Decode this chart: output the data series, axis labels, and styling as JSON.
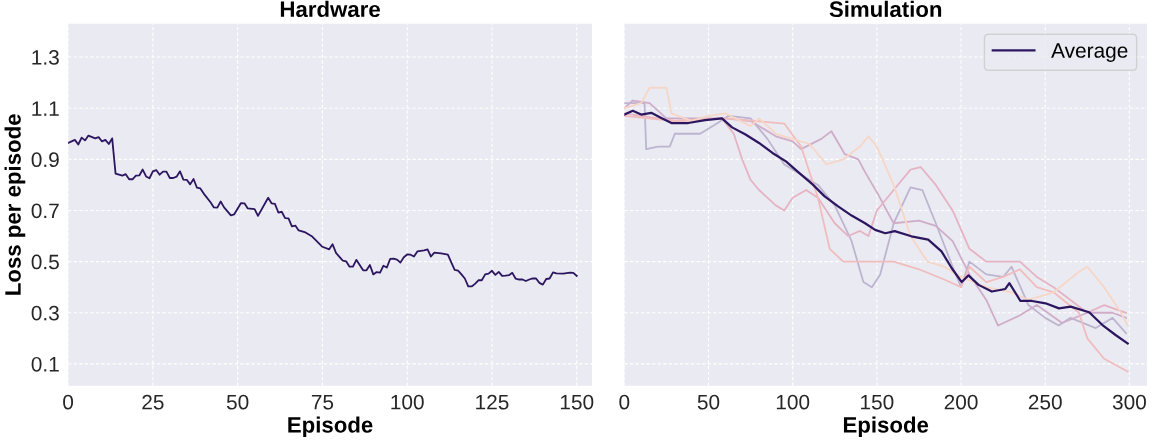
{
  "chart_data": [
    {
      "type": "line",
      "title": "Hardware",
      "xlabel": "Episode",
      "ylabel": "Loss per episode",
      "xlim": [
        0,
        154.5
      ],
      "xticks": [
        0,
        25,
        50,
        75,
        100,
        125,
        150
      ],
      "ylim": [
        0.014,
        1.43
      ],
      "yticks": [
        0.1,
        0.3,
        0.5,
        0.7,
        0.9,
        1.1,
        1.3
      ],
      "grid": true,
      "legend": false,
      "x": [
        0,
        2,
        3,
        4,
        5,
        6,
        8,
        9,
        10,
        11,
        12,
        13,
        14,
        16,
        17,
        18,
        19,
        20,
        21,
        22,
        23,
        24,
        25,
        26,
        27,
        28,
        29,
        30,
        31,
        32,
        33,
        34,
        35,
        36,
        37,
        38,
        39,
        40,
        42,
        43,
        44,
        45,
        46,
        48,
        49,
        51,
        52,
        53,
        55,
        56,
        59,
        60,
        61,
        62,
        63,
        64,
        65,
        66,
        67,
        68,
        70,
        72,
        75,
        77,
        78,
        79,
        81,
        82,
        83,
        84,
        85,
        87,
        88,
        89,
        90,
        91,
        92,
        93,
        94,
        95,
        96,
        97,
        98,
        99,
        100,
        101,
        102,
        103,
        105,
        106,
        107,
        108,
        110,
        112,
        113,
        114,
        115,
        116,
        117,
        118,
        119,
        120,
        121,
        122,
        123,
        124,
        125,
        126,
        127,
        128,
        129,
        130,
        131,
        132,
        133,
        134,
        135,
        136,
        137,
        138,
        139,
        140,
        141,
        142,
        143,
        144,
        146,
        148,
        149,
        150
      ],
      "series": [
        {
          "color": "#2d1660",
          "values": [
            0.964,
            0.976,
            0.958,
            0.985,
            0.974,
            0.993,
            0.982,
            0.987,
            0.97,
            0.976,
            0.96,
            0.982,
            0.844,
            0.836,
            0.842,
            0.822,
            0.822,
            0.836,
            0.837,
            0.86,
            0.833,
            0.826,
            0.853,
            0.858,
            0.84,
            0.852,
            0.852,
            0.827,
            0.827,
            0.832,
            0.853,
            0.821,
            0.82,
            0.802,
            0.823,
            0.789,
            0.786,
            0.766,
            0.732,
            0.712,
            0.711,
            0.735,
            0.712,
            0.681,
            0.685,
            0.729,
            0.728,
            0.708,
            0.705,
            0.679,
            0.75,
            0.728,
            0.726,
            0.692,
            0.695,
            0.67,
            0.669,
            0.638,
            0.641,
            0.622,
            0.614,
            0.598,
            0.558,
            0.548,
            0.568,
            0.534,
            0.504,
            0.501,
            0.48,
            0.48,
            0.507,
            0.466,
            0.466,
            0.487,
            0.45,
            0.459,
            0.457,
            0.484,
            0.477,
            0.511,
            0.512,
            0.508,
            0.496,
            0.517,
            0.528,
            0.527,
            0.52,
            0.54,
            0.544,
            0.548,
            0.52,
            0.535,
            0.532,
            0.527,
            0.497,
            0.468,
            0.465,
            0.45,
            0.434,
            0.403,
            0.403,
            0.413,
            0.427,
            0.427,
            0.45,
            0.453,
            0.464,
            0.448,
            0.46,
            0.444,
            0.445,
            0.447,
            0.456,
            0.433,
            0.43,
            0.43,
            0.424,
            0.43,
            0.434,
            0.434,
            0.417,
            0.41,
            0.432,
            0.434,
            0.458,
            0.454,
            0.453,
            0.457,
            0.456,
            0.444
          ]
        }
      ]
    },
    {
      "type": "line",
      "title": "Simulation",
      "xlabel": "Episode",
      "xlim": [
        0,
        310.5
      ],
      "xticks": [
        0,
        50,
        100,
        150,
        200,
        250,
        300
      ],
      "ylim": [
        0.014,
        1.43
      ],
      "yticks": [
        0.1,
        0.3,
        0.5,
        0.7,
        0.9,
        1.1,
        1.3
      ],
      "grid": true,
      "legend": "top right",
      "tick_labels": "x",
      "series": [
        {
          "color": "#bdb5cf",
          "x": [
            0,
            12,
            13,
            20,
            27,
            30,
            45,
            55,
            62,
            75,
            85,
            95,
            105,
            115,
            125,
            135,
            142,
            147,
            152,
            160,
            170,
            177,
            185,
            195,
            200,
            205,
            215,
            225,
            230,
            240,
            250,
            258,
            265,
            280,
            290,
            298
          ],
          "values": [
            1.12,
            1.12,
            0.94,
            0.95,
            0.95,
            1.0,
            1.0,
            1.04,
            1.07,
            1.06,
            0.98,
            0.88,
            0.84,
            0.8,
            0.72,
            0.58,
            0.42,
            0.4,
            0.45,
            0.65,
            0.79,
            0.78,
            0.65,
            0.48,
            0.4,
            0.5,
            0.45,
            0.44,
            0.48,
            0.33,
            0.28,
            0.25,
            0.28,
            0.24,
            0.28,
            0.22
          ]
        },
        {
          "color": "#cfadc9",
          "x": [
            0,
            5,
            15,
            25,
            40,
            60,
            75,
            90,
            100,
            105,
            117,
            123,
            131,
            139,
            143,
            151,
            155,
            160,
            175,
            185,
            195,
            205,
            215,
            222,
            235,
            245,
            260,
            275,
            290,
            298
          ],
          "values": [
            1.1,
            1.13,
            1.12,
            1.06,
            1.06,
            1.06,
            1.05,
            0.99,
            0.97,
            0.94,
            0.98,
            1.01,
            0.92,
            0.9,
            0.85,
            0.76,
            0.71,
            0.65,
            0.66,
            0.64,
            0.58,
            0.45,
            0.35,
            0.25,
            0.29,
            0.33,
            0.26,
            0.3,
            0.3,
            0.28
          ]
        },
        {
          "color": "#e6b3c3",
          "x": [
            0,
            30,
            58,
            65,
            70,
            75,
            80,
            90,
            95,
            100,
            108,
            115,
            125,
            133,
            140,
            145,
            150,
            160,
            170,
            176,
            185,
            195,
            205,
            215,
            225,
            235,
            245,
            255,
            265,
            275,
            285,
            298
          ],
          "values": [
            1.08,
            1.05,
            1.06,
            1.0,
            0.9,
            0.82,
            0.78,
            0.72,
            0.7,
            0.75,
            0.78,
            0.75,
            0.65,
            0.6,
            0.62,
            0.6,
            0.7,
            0.78,
            0.86,
            0.87,
            0.8,
            0.7,
            0.55,
            0.5,
            0.5,
            0.5,
            0.44,
            0.4,
            0.35,
            0.3,
            0.33,
            0.3
          ]
        },
        {
          "color": "#f1bcbc",
          "x": [
            0,
            30,
            60,
            95,
            105,
            115,
            122,
            130,
            140,
            150,
            160,
            175,
            190,
            200,
            205,
            215,
            225,
            235,
            245,
            255,
            270,
            275,
            285,
            299
          ],
          "values": [
            1.07,
            1.05,
            1.06,
            1.04,
            0.95,
            0.75,
            0.55,
            0.5,
            0.5,
            0.5,
            0.5,
            0.47,
            0.43,
            0.4,
            0.48,
            0.42,
            0.44,
            0.47,
            0.4,
            0.38,
            0.3,
            0.2,
            0.12,
            0.07
          ]
        },
        {
          "color": "#f7d6c6",
          "x": [
            0,
            10,
            15,
            25,
            28,
            40,
            50,
            60,
            75,
            80,
            90,
            100,
            110,
            120,
            130,
            140,
            145,
            150,
            160,
            170,
            180,
            190,
            200,
            215,
            230,
            240,
            255,
            270,
            275,
            285,
            295,
            299
          ],
          "values": [
            1.1,
            1.12,
            1.18,
            1.18,
            1.08,
            1.05,
            1.07,
            1.08,
            1.03,
            1.06,
            1.0,
            0.98,
            0.96,
            0.88,
            0.9,
            0.95,
            0.99,
            0.95,
            0.8,
            0.6,
            0.5,
            0.48,
            0.44,
            0.4,
            0.38,
            0.35,
            0.38,
            0.46,
            0.48,
            0.4,
            0.3,
            0.25
          ]
        },
        {
          "name": "Average",
          "color": "#2d1660",
          "x": [
            0,
            5,
            10,
            16,
            22,
            28,
            38,
            48,
            58,
            64,
            72,
            80,
            88,
            96,
            104,
            112,
            119,
            127,
            135,
            143,
            149,
            155,
            160.6,
            170.5,
            180.5,
            188.4,
            194.4,
            200.4,
            204.4,
            210.4,
            218.3,
            226.3,
            228.7,
            235.3,
            242.2,
            250.2,
            258.2,
            265.1,
            276.1,
            284,
            292,
            299
          ],
          "values": [
            1.075,
            1.09,
            1.075,
            1.082,
            1.062,
            1.042,
            1.042,
            1.053,
            1.06,
            1.025,
            0.997,
            0.964,
            0.925,
            0.892,
            0.846,
            0.801,
            0.755,
            0.716,
            0.68,
            0.65,
            0.624,
            0.611,
            0.619,
            0.599,
            0.586,
            0.54,
            0.475,
            0.42,
            0.446,
            0.409,
            0.383,
            0.393,
            0.416,
            0.346,
            0.346,
            0.337,
            0.317,
            0.324,
            0.302,
            0.252,
            0.212,
            0.18
          ]
        }
      ]
    }
  ]
}
